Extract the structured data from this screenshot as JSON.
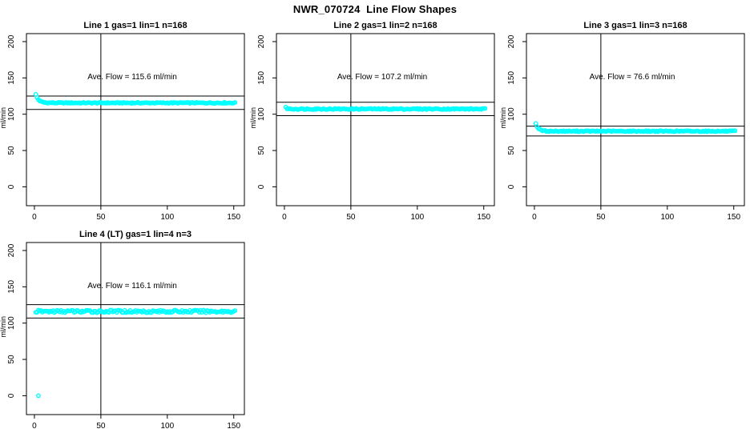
{
  "page_title": "NWR_070724  Line Flow Shapes",
  "colors": {
    "point_color": "#00ffff",
    "axis_color": "#000000",
    "background": "#ffffff",
    "text_color": "#000000"
  },
  "axes": {
    "ylabel": "ml/min",
    "xticks": [
      0,
      50,
      100,
      150
    ],
    "yticks": [
      0,
      50,
      100,
      150,
      200
    ],
    "xlim": [
      -6,
      158
    ],
    "ylim": [
      -26,
      211
    ],
    "grid": false
  },
  "chart_data": [
    {
      "type": "scatter",
      "title": "Line 1 gas=1 lin=1 n=168",
      "annotation": "Ave. Flow =  115.6  ml/min",
      "ave_flow_ml_min": 115.6,
      "n": 168,
      "x_range": [
        1,
        151
      ],
      "initial_value": 127,
      "steady_value": 115.6,
      "decay_constant": 2.2,
      "jitter": 0.7,
      "hlines": [
        125,
        106.5
      ],
      "vline_x": 50,
      "outliers": []
    },
    {
      "type": "scatter",
      "title": "Line 2 gas=1 lin=2 n=168",
      "annotation": "Ave. Flow =  107.2  ml/min",
      "ave_flow_ml_min": 107.2,
      "n": 168,
      "x_range": [
        1,
        151
      ],
      "initial_value": 109,
      "steady_value": 107.2,
      "decay_constant": 1.2,
      "jitter": 0.8,
      "hlines": [
        116.5,
        98
      ],
      "vline_x": 50,
      "outliers": []
    },
    {
      "type": "scatter",
      "title": "Line 3 gas=1 lin=3 n=168",
      "annotation": "Ave. Flow =  76.6  ml/min",
      "ave_flow_ml_min": 76.6,
      "n": 168,
      "x_range": [
        1,
        151
      ],
      "initial_value": 87,
      "steady_value": 76.6,
      "decay_constant": 2.0,
      "jitter": 0.7,
      "hlines": [
        83.5,
        70
      ],
      "vline_x": 50,
      "outliers": []
    },
    {
      "type": "scatter",
      "title": "Line 4 (LT) gas=1 lin=4 n=3",
      "annotation": "Ave. Flow =  116.1  ml/min",
      "ave_flow_ml_min": 116.1,
      "n": 3,
      "x_range": [
        1,
        151
      ],
      "initial_value": 116.1,
      "steady_value": 116.1,
      "decay_constant": 1.0,
      "jitter": 1.8,
      "hlines": [
        125.5,
        107
      ],
      "vline_x": 50,
      "outliers": [
        [
          3,
          0
        ]
      ]
    }
  ]
}
